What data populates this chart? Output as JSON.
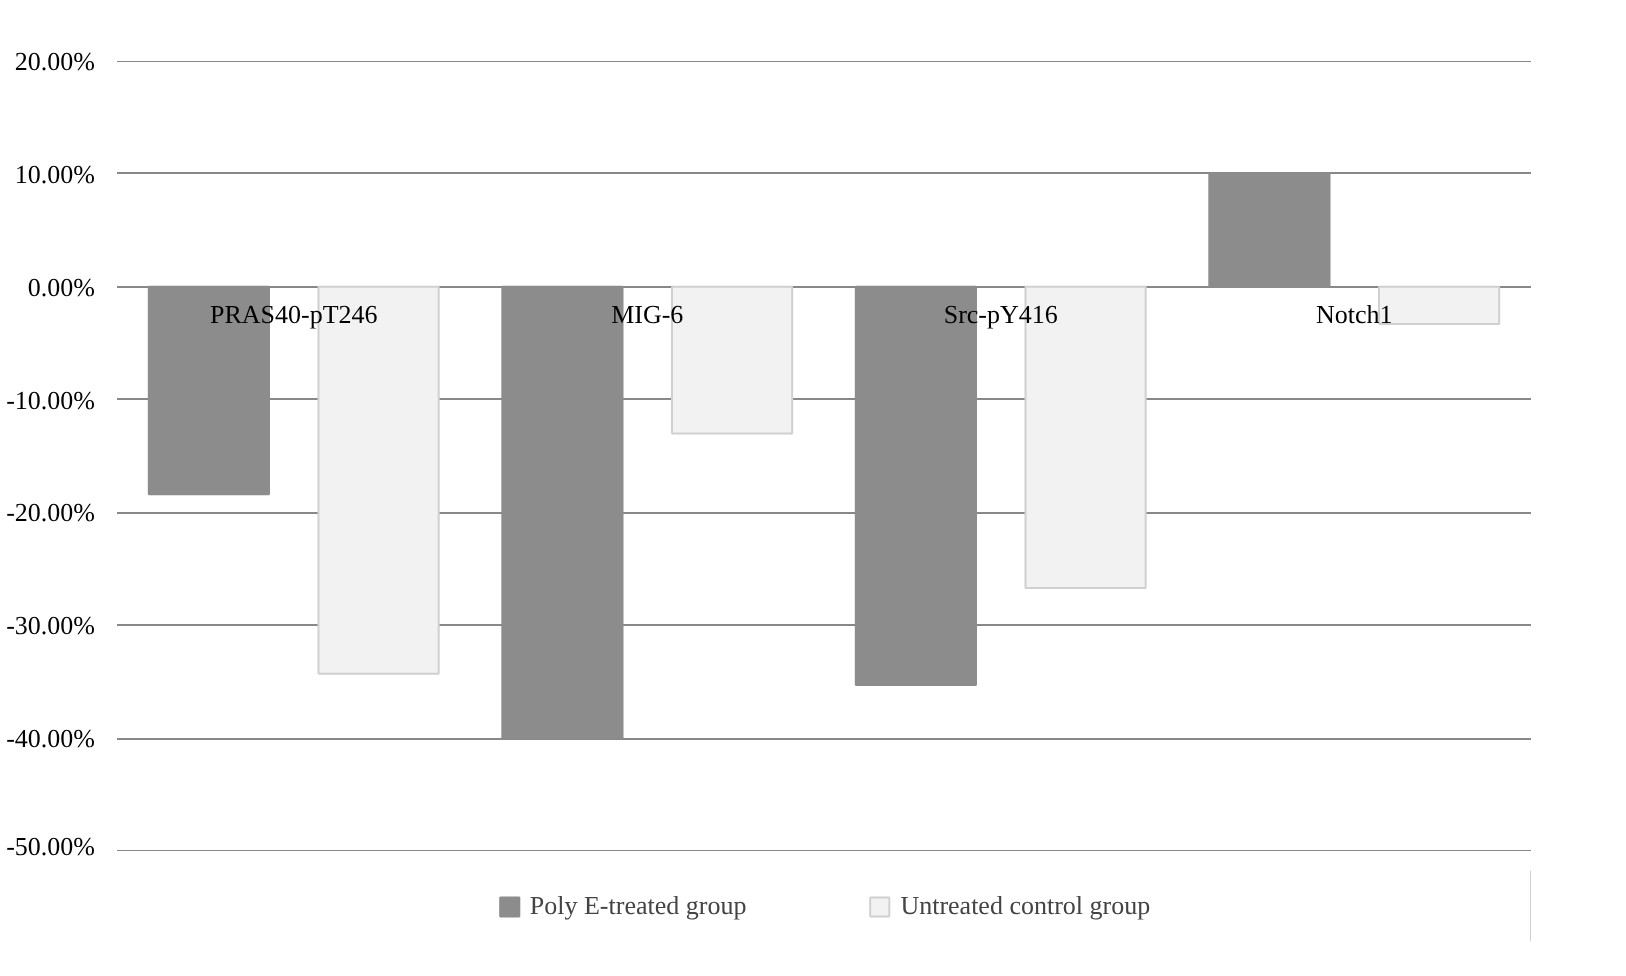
{
  "chart_data": {
    "type": "bar",
    "categories": [
      "PRAS40-pT246",
      "MIG-6",
      "Src-pY416",
      "Notch1"
    ],
    "series": [
      {
        "name": "Poly E-treated group",
        "color": "#8c8c8c",
        "values": [
          -18.4,
          -40.0,
          -35.3,
          10.0
        ]
      },
      {
        "name": "Untreated control group",
        "color": "#f2f2f2",
        "values": [
          -34.3,
          -13.0,
          -26.7,
          -3.3
        ]
      }
    ],
    "ylim": [
      -50,
      20
    ],
    "yticks": [
      {
        "value": -50,
        "label": "-50.00%"
      },
      {
        "value": -40,
        "label": "-40.00%"
      },
      {
        "value": -30,
        "label": "-30.00%"
      },
      {
        "value": -20,
        "label": "-20.00%"
      },
      {
        "value": -10,
        "label": "-10.00%"
      },
      {
        "value": 0,
        "label": "0.00%"
      },
      {
        "value": 10,
        "label": "10.00%"
      },
      {
        "value": 20,
        "label": "20.00%"
      }
    ],
    "grid": "y",
    "legend": "bottom"
  }
}
